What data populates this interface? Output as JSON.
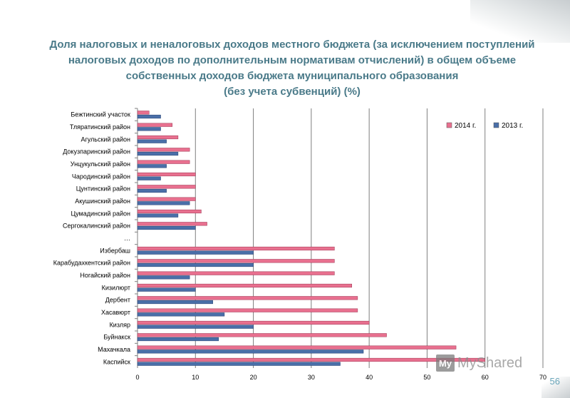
{
  "title_lines": [
    "Доля налоговых и неналоговых доходов местного бюджета (за исключением поступлений",
    "налоговых доходов по дополнительным нормативам отчислений) в общем объеме",
    "собственных доходов бюджета муниципального образования",
    "(без учета субвенций) (%)"
  ],
  "page_number": "56",
  "watermark": {
    "logo": "My",
    "text": "MyShared"
  },
  "chart_data": {
    "type": "bar",
    "orientation": "horizontal",
    "categories": [
      "Бежтинский участок",
      "Тляратинский район",
      "Агульский район",
      "Докузпаринский район",
      "Унцукульский район",
      "Чародинский район",
      "Цунтинский район",
      "Акушинский район",
      "Цумадинский район",
      "Сергокалинский район",
      "…",
      "Избербаш",
      "Карабудахкентский район",
      "Ногайский район",
      "Кизилюрт",
      "Дербент",
      "Хасавюрт",
      "Кизляр",
      "Буйнакск",
      "Махачкала",
      "Каспийск"
    ],
    "series": [
      {
        "name": "2014 г.",
        "color": "#e8708f",
        "values": [
          2,
          6,
          7,
          9,
          9,
          10,
          10,
          10,
          11,
          12,
          null,
          34,
          34,
          34,
          37,
          38,
          38,
          40,
          43,
          55,
          60
        ]
      },
      {
        "name": "2013 г.",
        "color": "#4a6fa8",
        "values": [
          4,
          4,
          5,
          7,
          5,
          4,
          5,
          9,
          7,
          10,
          null,
          20,
          20,
          9,
          10,
          13,
          15,
          20,
          14,
          39,
          35
        ]
      }
    ],
    "xlim": [
      0,
      70
    ],
    "xticks": [
      "0",
      "10",
      "20",
      "30",
      "40",
      "50",
      "60",
      "70"
    ],
    "grid": true,
    "legend_position": "top-right"
  }
}
